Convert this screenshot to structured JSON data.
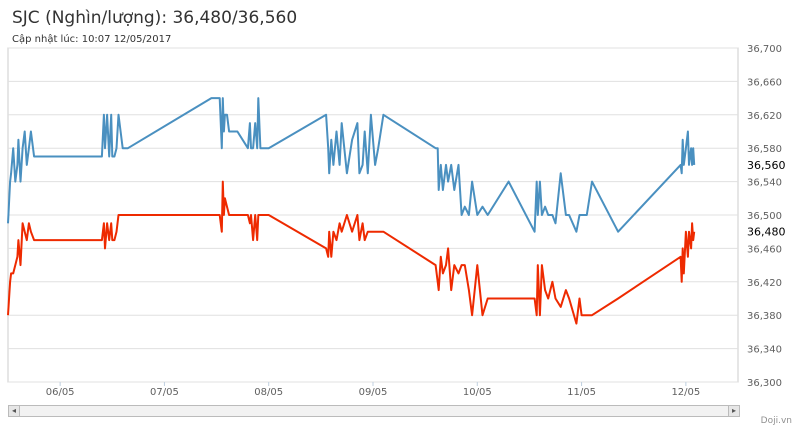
{
  "title": "SJC (Nghìn/lượng): 36,480/36,560",
  "subtitle": "Cập nhật lúc: 10:07 12/05/2017",
  "credit": "Doji.vn",
  "scrollbar": {
    "left_arrow": "◂",
    "right_arrow": "▸"
  },
  "colors": {
    "sell": "#4a90c0",
    "buy": "#ee2a00",
    "grid": "#e0e0e0",
    "axis": "#c0d0e0"
  },
  "chart_data": {
    "type": "line",
    "title": "SJC (Nghìn/lượng): 36,480/36,560",
    "subtitle": "Cập nhật lúc: 10:07 12/05/2017",
    "xlabel": "",
    "ylabel": "",
    "x_tick_labels": [
      "06/05",
      "07/05",
      "08/05",
      "09/05",
      "10/05",
      "11/05",
      "12/05"
    ],
    "xlim": [
      0.0,
      7.0
    ],
    "ylim": [
      36300,
      36700
    ],
    "y_ticks": [
      36300,
      36340,
      36380,
      36420,
      36460,
      36500,
      36540,
      36580,
      36620,
      36660,
      36700
    ],
    "y_tick_labels": [
      "36,300",
      "36,340",
      "36,380",
      "36,420",
      "36,460",
      "36,500",
      "36,540",
      "36,580",
      "36,620",
      "36,660",
      "36,700"
    ],
    "grid": true,
    "last_value_labels": [
      "36,560",
      "36,480"
    ],
    "series": [
      {
        "values_desc": "sell",
        "x": [
          0.0,
          0.02,
          0.03,
          0.05,
          0.07,
          0.09,
          0.1,
          0.12,
          0.14,
          0.16,
          0.18,
          0.2,
          0.22,
          0.25,
          0.28,
          0.3,
          0.35,
          0.9,
          0.92,
          0.93,
          0.95,
          0.97,
          0.99,
          1.0,
          1.02,
          1.04,
          1.06,
          1.1,
          1.15,
          1.95,
          2.03,
          2.05,
          2.06,
          2.07,
          2.08,
          2.1,
          2.12,
          2.15,
          2.2,
          2.3,
          2.32,
          2.33,
          2.35,
          2.37,
          2.39,
          2.4,
          2.42,
          2.45,
          2.5,
          3.05,
          3.07,
          3.08,
          3.1,
          3.12,
          3.15,
          3.18,
          3.2,
          3.25,
          3.3,
          3.35,
          3.37,
          3.4,
          3.42,
          3.45,
          3.48,
          3.52,
          3.55,
          3.6,
          4.1,
          4.12,
          4.13,
          4.15,
          4.17,
          4.2,
          4.22,
          4.25,
          4.28,
          4.32,
          4.35,
          4.38,
          4.42,
          4.45,
          4.5,
          4.55,
          4.6,
          4.8,
          5.05,
          5.07,
          5.08,
          5.1,
          5.12,
          5.15,
          5.18,
          5.22,
          5.25,
          5.3,
          5.35,
          5.38,
          5.45,
          5.48,
          5.5,
          5.55,
          5.6,
          5.85,
          6.45,
          6.46,
          6.47,
          6.48,
          6.5,
          6.52,
          6.53,
          6.55,
          6.56,
          6.57,
          6.58
        ],
        "y": [
          36490,
          36540,
          36550,
          36580,
          36540,
          36560,
          36590,
          36540,
          36580,
          36600,
          36560,
          36580,
          36600,
          36570,
          36570,
          36570,
          36570,
          36570,
          36620,
          36580,
          36620,
          36570,
          36620,
          36570,
          36570,
          36580,
          36620,
          36580,
          36580,
          36640,
          36640,
          36580,
          36640,
          36600,
          36620,
          36620,
          36600,
          36600,
          36600,
          36580,
          36610,
          36580,
          36580,
          36610,
          36580,
          36640,
          36580,
          36580,
          36580,
          36620,
          36580,
          36550,
          36590,
          36560,
          36600,
          36560,
          36610,
          36550,
          36590,
          36610,
          36550,
          36560,
          36600,
          36550,
          36620,
          36560,
          36580,
          36620,
          36580,
          36580,
          36530,
          36560,
          36530,
          36560,
          36540,
          36560,
          36530,
          36560,
          36500,
          36510,
          36500,
          36540,
          36500,
          36510,
          36500,
          36540,
          36480,
          36540,
          36500,
          36540,
          36500,
          36510,
          36500,
          36500,
          36490,
          36550,
          36500,
          36500,
          36480,
          36500,
          36500,
          36500,
          36540,
          36480,
          36560,
          36550,
          36590,
          36560,
          36580,
          36600,
          36560,
          36580,
          36560,
          36580,
          36560
        ]
      },
      {
        "values_desc": "buy",
        "x": [
          0.0,
          0.02,
          0.03,
          0.05,
          0.07,
          0.09,
          0.1,
          0.12,
          0.14,
          0.16,
          0.18,
          0.2,
          0.22,
          0.25,
          0.28,
          0.3,
          0.35,
          0.9,
          0.92,
          0.93,
          0.95,
          0.97,
          0.99,
          1.0,
          1.02,
          1.04,
          1.06,
          1.1,
          1.15,
          1.95,
          2.03,
          2.05,
          2.06,
          2.07,
          2.08,
          2.1,
          2.12,
          2.15,
          2.2,
          2.3,
          2.32,
          2.33,
          2.35,
          2.37,
          2.39,
          2.4,
          2.42,
          2.45,
          2.5,
          3.05,
          3.07,
          3.08,
          3.1,
          3.12,
          3.15,
          3.18,
          3.2,
          3.25,
          3.3,
          3.35,
          3.37,
          3.4,
          3.42,
          3.45,
          3.48,
          3.52,
          3.55,
          3.6,
          4.1,
          4.12,
          4.13,
          4.15,
          4.17,
          4.2,
          4.22,
          4.25,
          4.28,
          4.32,
          4.35,
          4.38,
          4.42,
          4.45,
          4.5,
          4.55,
          4.6,
          4.8,
          5.05,
          5.07,
          5.08,
          5.1,
          5.12,
          5.15,
          5.18,
          5.22,
          5.25,
          5.3,
          5.35,
          5.38,
          5.45,
          5.48,
          5.5,
          5.55,
          5.6,
          5.85,
          6.45,
          6.46,
          6.47,
          6.48,
          6.5,
          6.52,
          6.53,
          6.55,
          6.56,
          6.57,
          6.58
        ],
        "y": [
          36380,
          36420,
          36430,
          36430,
          36440,
          36450,
          36470,
          36440,
          36490,
          36480,
          36470,
          36490,
          36480,
          36470,
          36470,
          36470,
          36470,
          36470,
          36490,
          36460,
          36490,
          36470,
          36490,
          36470,
          36470,
          36480,
          36500,
          36500,
          36500,
          36500,
          36500,
          36480,
          36540,
          36500,
          36520,
          36510,
          36500,
          36500,
          36500,
          36500,
          36490,
          36500,
          36470,
          36500,
          36470,
          36500,
          36500,
          36500,
          36500,
          36460,
          36450,
          36480,
          36450,
          36480,
          36470,
          36490,
          36480,
          36500,
          36480,
          36500,
          36470,
          36490,
          36470,
          36480,
          36480,
          36480,
          36480,
          36480,
          36440,
          36420,
          36410,
          36450,
          36430,
          36440,
          36460,
          36410,
          36440,
          36430,
          36440,
          36440,
          36410,
          36380,
          36440,
          36380,
          36400,
          36400,
          36400,
          36380,
          36440,
          36380,
          36440,
          36410,
          36400,
          36420,
          36400,
          36390,
          36410,
          36400,
          36370,
          36400,
          36380,
          36380,
          36380,
          36400,
          36450,
          36420,
          36460,
          36430,
          36480,
          36450,
          36480,
          36460,
          36490,
          36470,
          36480
        ]
      }
    ]
  }
}
